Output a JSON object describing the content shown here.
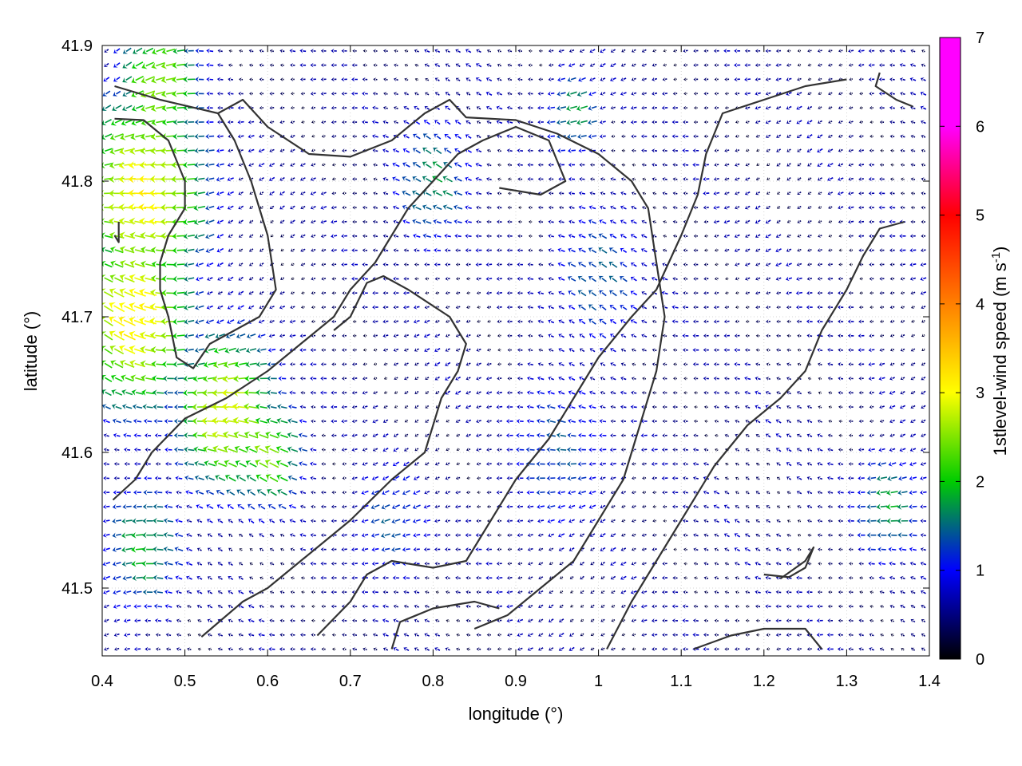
{
  "chart_data": {
    "type": "vector-field",
    "xlabel": "longitude (°)",
    "ylabel": "latitude (°)",
    "colorbar_label_main": "1stlevel-wind speed (m s",
    "colorbar_label_sup": "-1",
    "colorbar_label_close": ")",
    "xlim": [
      0.4,
      1.4
    ],
    "ylim": [
      41.45,
      41.9
    ],
    "xticks": [
      "0.4",
      "0.5",
      "0.6",
      "0.7",
      "0.8",
      "0.9",
      "1",
      "1.1",
      "1.2",
      "1.3",
      "1.4"
    ],
    "xtick_values": [
      0.4,
      0.5,
      0.6,
      0.7,
      0.8,
      0.9,
      1.0,
      1.1,
      1.2,
      1.3,
      1.4
    ],
    "yticks": [
      "41.5",
      "41.6",
      "41.7",
      "41.8",
      "41.9"
    ],
    "ytick_values": [
      41.5,
      41.6,
      41.7,
      41.8,
      41.9
    ],
    "colorbar_range": [
      0,
      7
    ],
    "colorbar_ticks": [
      "0",
      "1",
      "2",
      "3",
      "4",
      "5",
      "6",
      "7"
    ],
    "colorbar_tick_values": [
      0,
      1,
      2,
      3,
      4,
      5,
      6,
      7
    ],
    "colormap": [
      "#000000",
      "#0000ff",
      "#00cc00",
      "#ffff00",
      "#ff8000",
      "#ff0000",
      "#ff00ff"
    ],
    "grid": true,
    "arrow_grid": {
      "lon_start": 0.405,
      "lon_step": 0.0125,
      "lon_count": 82,
      "lat_start": 41.455,
      "lat_step": 0.0105,
      "lat_count": 43
    },
    "wind_clusters": [
      {
        "lon": 0.45,
        "lat": 41.79,
        "speed": 3.6,
        "radius": 0.09
      },
      {
        "lon": 0.44,
        "lat": 41.7,
        "speed": 3.7,
        "radius": 0.08
      },
      {
        "lon": 0.55,
        "lat": 41.63,
        "speed": 3.4,
        "radius": 0.07
      },
      {
        "lon": 0.47,
        "lat": 41.87,
        "speed": 3.0,
        "radius": 0.06
      },
      {
        "lon": 0.6,
        "lat": 41.6,
        "speed": 2.9,
        "radius": 0.05
      },
      {
        "lon": 0.45,
        "lat": 41.53,
        "speed": 2.2,
        "radius": 0.06
      },
      {
        "lon": 0.8,
        "lat": 41.8,
        "speed": 2.0,
        "radius": 0.06
      },
      {
        "lon": 0.97,
        "lat": 41.85,
        "speed": 2.1,
        "radius": 0.04
      },
      {
        "lon": 1.0,
        "lat": 41.73,
        "speed": 1.7,
        "radius": 0.07
      },
      {
        "lon": 0.95,
        "lat": 41.6,
        "speed": 1.6,
        "radius": 0.08
      },
      {
        "lon": 1.35,
        "lat": 41.56,
        "speed": 2.1,
        "radius": 0.05
      },
      {
        "lon": 0.75,
        "lat": 41.55,
        "speed": 1.6,
        "radius": 0.06
      }
    ],
    "coastlines": [
      [
        [
          0.415,
          41.87
        ],
        [
          0.47,
          41.86
        ],
        [
          0.54,
          41.85
        ],
        [
          0.57,
          41.86
        ],
        [
          0.6,
          41.84
        ],
        [
          0.65,
          41.82
        ],
        [
          0.7,
          41.818
        ],
        [
          0.75,
          41.83
        ],
        [
          0.79,
          41.85
        ],
        [
          0.82,
          41.86
        ],
        [
          0.84,
          41.847
        ],
        [
          0.9,
          41.845
        ],
        [
          0.95,
          41.835
        ],
        [
          1.0,
          41.82
        ],
        [
          1.04,
          41.8
        ],
        [
          1.06,
          41.78
        ],
        [
          1.07,
          41.74
        ],
        [
          1.08,
          41.7
        ],
        [
          1.07,
          41.66
        ],
        [
          1.05,
          41.62
        ],
        [
          1.03,
          41.58
        ],
        [
          1.0,
          41.55
        ],
        [
          0.97,
          41.52
        ],
        [
          0.93,
          41.5
        ],
        [
          0.89,
          41.48
        ],
        [
          0.85,
          41.47
        ]
      ],
      [
        [
          0.415,
          41.846
        ],
        [
          0.45,
          41.845
        ],
        [
          0.48,
          41.83
        ],
        [
          0.5,
          41.8
        ],
        [
          0.5,
          41.78
        ],
        [
          0.48,
          41.76
        ],
        [
          0.47,
          41.74
        ],
        [
          0.47,
          41.72
        ],
        [
          0.48,
          41.7
        ],
        [
          0.49,
          41.67
        ],
        [
          0.51,
          41.662
        ],
        [
          0.53,
          41.68
        ],
        [
          0.56,
          41.69
        ],
        [
          0.59,
          41.7
        ],
        [
          0.61,
          41.72
        ],
        [
          0.6,
          41.76
        ],
        [
          0.58,
          41.8
        ],
        [
          0.56,
          41.83
        ],
        [
          0.54,
          41.85
        ]
      ],
      [
        [
          0.413,
          41.565
        ],
        [
          0.44,
          41.58
        ],
        [
          0.46,
          41.6
        ],
        [
          0.5,
          41.625
        ],
        [
          0.55,
          41.64
        ],
        [
          0.6,
          41.66
        ],
        [
          0.64,
          41.68
        ],
        [
          0.68,
          41.7
        ],
        [
          0.7,
          41.72
        ],
        [
          0.73,
          41.74
        ],
        [
          0.75,
          41.76
        ],
        [
          0.77,
          41.78
        ],
        [
          0.8,
          41.8
        ],
        [
          0.83,
          41.82
        ],
        [
          0.86,
          41.83
        ],
        [
          0.9,
          41.84
        ],
        [
          0.94,
          41.83
        ],
        [
          0.96,
          41.8
        ],
        [
          0.93,
          41.79
        ],
        [
          0.88,
          41.795
        ]
      ],
      [
        [
          0.52,
          41.464
        ],
        [
          0.57,
          41.49
        ],
        [
          0.6,
          41.5
        ],
        [
          0.64,
          41.52
        ],
        [
          0.66,
          41.53
        ],
        [
          0.7,
          41.55
        ],
        [
          0.75,
          41.58
        ],
        [
          0.79,
          41.6
        ],
        [
          0.8,
          41.62
        ],
        [
          0.81,
          41.64
        ],
        [
          0.83,
          41.66
        ],
        [
          0.84,
          41.68
        ],
        [
          0.82,
          41.7
        ],
        [
          0.77,
          41.72
        ],
        [
          0.74,
          41.73
        ],
        [
          0.72,
          41.725
        ],
        [
          0.7,
          41.7
        ],
        [
          0.68,
          41.69
        ]
      ],
      [
        [
          0.66,
          41.465
        ],
        [
          0.7,
          41.49
        ],
        [
          0.72,
          41.51
        ],
        [
          0.75,
          41.52
        ],
        [
          0.8,
          41.515
        ],
        [
          0.84,
          41.52
        ],
        [
          0.87,
          41.55
        ],
        [
          0.9,
          41.58
        ],
        [
          0.94,
          41.61
        ],
        [
          0.97,
          41.64
        ],
        [
          1.0,
          41.67
        ],
        [
          1.04,
          41.7
        ],
        [
          1.07,
          41.72
        ],
        [
          1.1,
          41.76
        ],
        [
          1.12,
          41.79
        ],
        [
          1.13,
          41.82
        ],
        [
          1.15,
          41.85
        ],
        [
          1.2,
          41.86
        ],
        [
          1.25,
          41.87
        ],
        [
          1.3,
          41.875
        ]
      ],
      [
        [
          1.01,
          41.455
        ],
        [
          1.04,
          41.49
        ],
        [
          1.07,
          41.52
        ],
        [
          1.1,
          41.55
        ],
        [
          1.14,
          41.59
        ],
        [
          1.18,
          41.62
        ],
        [
          1.22,
          41.64
        ],
        [
          1.25,
          41.66
        ],
        [
          1.27,
          41.69
        ],
        [
          1.3,
          41.72
        ],
        [
          1.32,
          41.745
        ],
        [
          1.34,
          41.765
        ],
        [
          1.37,
          41.77
        ]
      ],
      [
        [
          1.115,
          41.455
        ],
        [
          1.16,
          41.465
        ],
        [
          1.2,
          41.47
        ],
        [
          1.25,
          41.47
        ],
        [
          1.27,
          41.455
        ]
      ],
      [
        [
          1.2,
          41.51
        ],
        [
          1.23,
          41.508
        ],
        [
          1.25,
          41.515
        ],
        [
          1.26,
          41.53
        ],
        [
          1.25,
          41.52
        ],
        [
          1.22,
          41.507
        ]
      ],
      [
        [
          0.75,
          41.455
        ],
        [
          0.76,
          41.475
        ],
        [
          0.8,
          41.485
        ],
        [
          0.85,
          41.49
        ],
        [
          0.88,
          41.485
        ]
      ],
      [
        [
          0.415,
          41.76
        ],
        [
          0.42,
          41.755
        ],
        [
          0.42,
          41.77
        ]
      ],
      [
        [
          1.34,
          41.88
        ],
        [
          1.335,
          41.87
        ],
        [
          1.36,
          41.86
        ],
        [
          1.38,
          41.855
        ]
      ]
    ]
  }
}
